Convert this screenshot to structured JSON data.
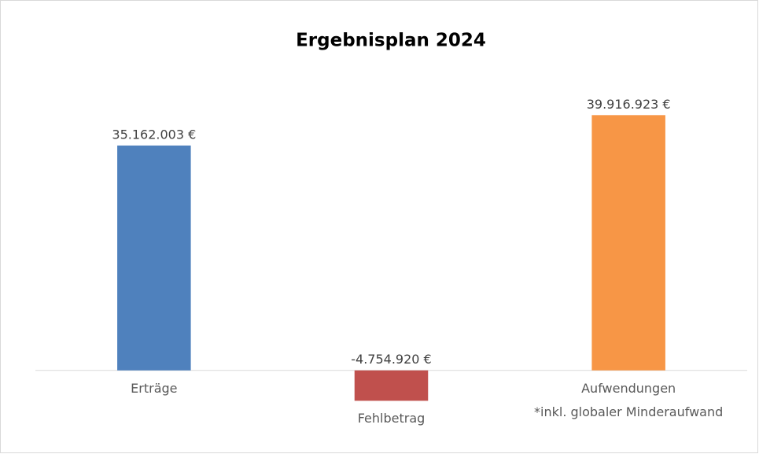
{
  "chart_data": {
    "type": "bar",
    "title": "Ergebnisplan 2024",
    "categories": [
      "Erträge",
      "Fehlbetrag",
      "Aufwendungen\n*inkl. globaler Minderaufwand"
    ],
    "values": [
      35162003,
      -4754920,
      39916923
    ],
    "value_labels": [
      "35.162.003 €",
      "-4.754.920 €",
      "39.916.923 €"
    ],
    "colors": [
      "#4f81bd",
      "#c0504d",
      "#f79646"
    ],
    "ylim": [
      -10000000,
      45000000
    ]
  }
}
